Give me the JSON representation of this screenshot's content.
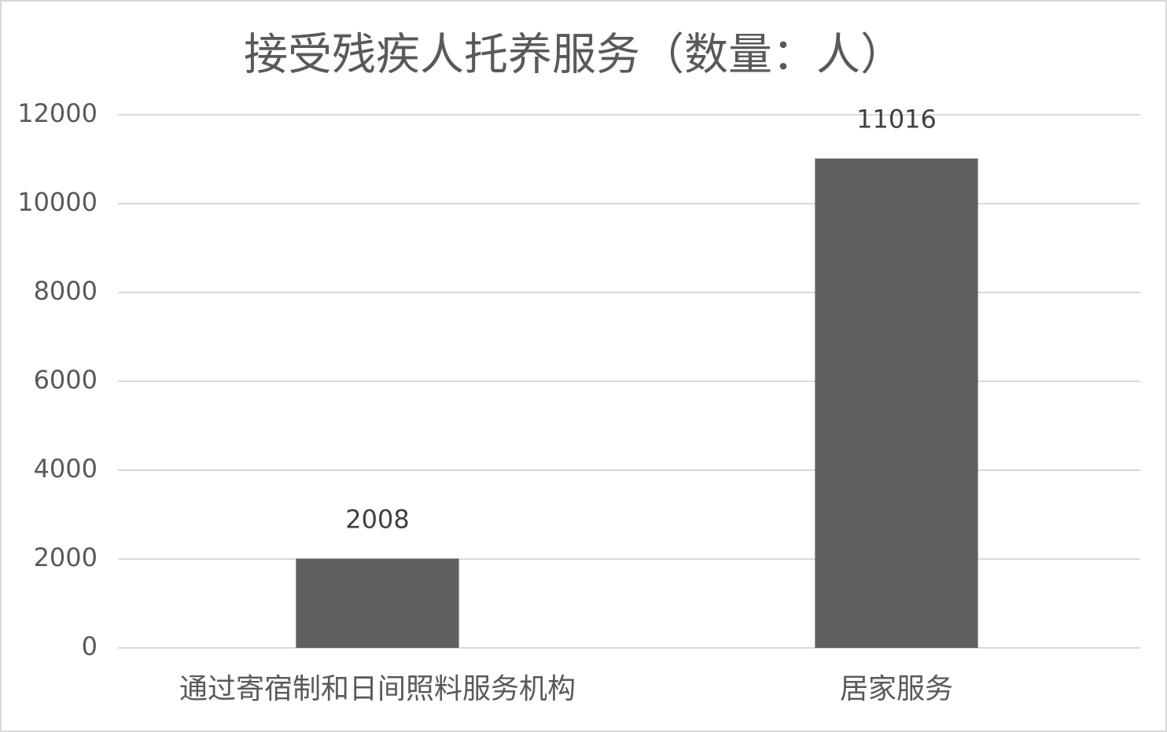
{
  "chart_data": {
    "type": "bar",
    "title": "接受残疾人托养服务（数量：人）",
    "categories": [
      "通过寄宿制和日间照料服务机构",
      "居家服务"
    ],
    "values": [
      2008,
      11016
    ],
    "color": "#606060",
    "ylim": [
      0,
      12000
    ],
    "yticks": [
      0,
      2000,
      4000,
      6000,
      8000,
      10000,
      12000
    ],
    "grid": true
  }
}
